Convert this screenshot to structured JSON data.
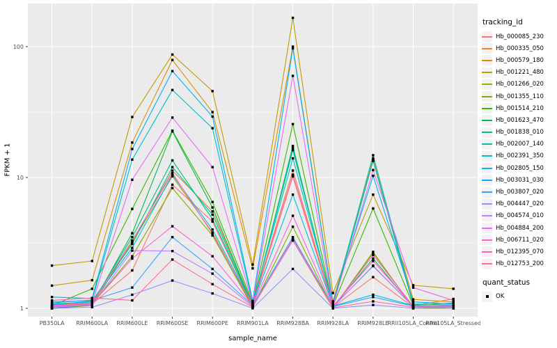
{
  "chart_data": {
    "type": "line",
    "title": "",
    "xlabel": "sample_name",
    "ylabel": "FPKM + 1",
    "y_scale": "log10",
    "y_ticks": [
      1,
      10,
      100
    ],
    "y_minor_ticks": [
      3.162,
      31.62
    ],
    "ylim": [
      0.93,
      214
    ],
    "grid": "on",
    "legend_position": "right",
    "panel_bg": "#EBEBEB",
    "grid_color": "#FFFFFF",
    "tick_label_color": "#4D4D4D",
    "point_style": {
      "shape": "square",
      "color": "#000000",
      "size": 3.4
    },
    "x_categories": [
      "PB350LA",
      "RRIM600LA",
      "RRIM600LE",
      "RRIM600SE",
      "RRIM600PE",
      "RRIM901LA",
      "RRIM928BA",
      "RRIM928LA",
      "RRIM928LE",
      "RRII105LA_Control",
      "RRII105LA_Stressed"
    ],
    "series": [
      {
        "name": "Hb_000085_230",
        "color": "#F8766D",
        "values": [
          1.02,
          1.08,
          1.95,
          8.8,
          4.6,
          1.05,
          10.2,
          1.02,
          1.73,
          1.02,
          1.02
        ]
      },
      {
        "name": "Hb_000335_050",
        "color": "#EA8331",
        "values": [
          1.05,
          1.12,
          3.2,
          11.3,
          5.5,
          1.08,
          11.3,
          1.05,
          14.0,
          1.05,
          1.18
        ]
      },
      {
        "name": "Hb_000579_180",
        "color": "#D89000",
        "values": [
          1.49,
          1.64,
          18.5,
          79,
          31.6,
          2.02,
          100,
          1.13,
          13.5,
          1.17,
          1.12
        ]
      },
      {
        "name": "Hb_001221_480",
        "color": "#C09B00",
        "values": [
          2.12,
          2.3,
          29,
          87,
          45.7,
          2.16,
          166,
          1.31,
          7.4,
          1.5,
          1.41
        ]
      },
      {
        "name": "Hb_001266_020",
        "color": "#A3A500",
        "values": [
          1.0,
          1.05,
          3.2,
          10.2,
          3.8,
          1.03,
          3.3,
          1.0,
          2.7,
          1.0,
          1.0
        ]
      },
      {
        "name": "Hb_001355_110",
        "color": "#7CAE00",
        "values": [
          1.0,
          1.08,
          2.5,
          8.3,
          3.6,
          1.02,
          4.2,
          1.0,
          2.65,
          1.02,
          1.0
        ]
      },
      {
        "name": "Hb_001514_210",
        "color": "#39B600",
        "values": [
          1.05,
          1.41,
          5.75,
          22.8,
          6.5,
          1.1,
          25.6,
          1.05,
          5.8,
          1.05,
          1.05
        ]
      },
      {
        "name": "Hb_001623_470",
        "color": "#00BB4E",
        "values": [
          1.0,
          1.06,
          3.75,
          22.5,
          5.9,
          1.04,
          17.4,
          1.02,
          2.4,
          1.02,
          1.03
        ]
      },
      {
        "name": "Hb_001838_010",
        "color": "#00BF7D",
        "values": [
          1.02,
          1.1,
          3.5,
          13.5,
          4.8,
          1.05,
          16.8,
          1.03,
          2.1,
          1.03,
          1.05
        ]
      },
      {
        "name": "Hb_002007_140",
        "color": "#00C1A3",
        "values": [
          1.06,
          1.14,
          3.1,
          12.0,
          5.2,
          1.06,
          16.2,
          1.06,
          13.4,
          1.06,
          1.1
        ]
      },
      {
        "name": "Hb_002391_350",
        "color": "#00BFC4",
        "values": [
          1.1,
          1.16,
          13.7,
          46.6,
          23.8,
          1.1,
          14.0,
          1.08,
          14.8,
          1.08,
          1.06
        ]
      },
      {
        "name": "Hb_002805_150",
        "color": "#00BAE0",
        "values": [
          1.08,
          1.12,
          2.9,
          10.5,
          4.0,
          1.06,
          7.4,
          1.04,
          1.27,
          1.05,
          1.04
        ]
      },
      {
        "name": "Hb_003031_030",
        "color": "#00B0F6",
        "values": [
          1.22,
          1.19,
          16.5,
          65,
          29.2,
          1.14,
          97,
          1.1,
          10.3,
          1.12,
          1.08
        ]
      },
      {
        "name": "Hb_003807_020",
        "color": "#35A2FF",
        "values": [
          1.12,
          1.15,
          1.44,
          3.5,
          2.0,
          1.05,
          3.5,
          1.03,
          1.22,
          1.04,
          1.03
        ]
      },
      {
        "name": "Hb_004447_020",
        "color": "#9590FF",
        "values": [
          1.0,
          1.02,
          1.27,
          1.63,
          1.3,
          1.0,
          2.0,
          1.0,
          1.06,
          1.0,
          1.0
        ]
      },
      {
        "name": "Hb_004574_010",
        "color": "#C77CFF",
        "values": [
          1.02,
          1.06,
          2.76,
          2.74,
          1.84,
          1.03,
          3.3,
          1.02,
          2.12,
          1.03,
          1.02
        ]
      },
      {
        "name": "Hb_004884_200",
        "color": "#E76BF3",
        "values": [
          1.05,
          1.1,
          9.6,
          28.7,
          12.0,
          1.1,
          59.8,
          1.05,
          11.4,
          1.44,
          1.15
        ]
      },
      {
        "name": "Hb_006711_020",
        "color": "#FA62DB",
        "values": [
          1.03,
          1.08,
          2.4,
          4.24,
          2.5,
          1.05,
          5.1,
          1.02,
          2.55,
          1.04,
          1.05
        ]
      },
      {
        "name": "Hb_012395_070",
        "color": "#FF62BC",
        "values": [
          1.04,
          1.1,
          3.3,
          10.8,
          3.7,
          1.06,
          10.5,
          1.04,
          2.3,
          1.04,
          1.04
        ]
      },
      {
        "name": "Hb_012753_200",
        "color": "#FF6A98",
        "values": [
          1.15,
          1.2,
          1.15,
          2.36,
          1.53,
          1.02,
          3.4,
          1.01,
          1.13,
          1.02,
          1.02
        ]
      }
    ]
  },
  "legend_tracking": {
    "title": "tracking_id"
  },
  "legend_quant": {
    "title": "quant_status",
    "items": [
      {
        "label": "OK"
      }
    ]
  }
}
